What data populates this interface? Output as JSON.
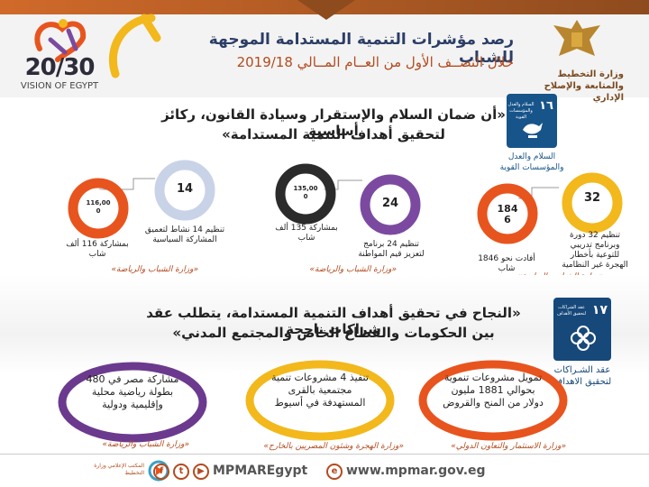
{
  "header": {
    "title": "رصد مؤشرات التنمية المستدامة الموجهة للشباب",
    "subtitle": "خلال النصــف الأول من العــام المــالي  2019/18",
    "ministry": "وزارة التخطيط والمتابعة والإصلاح الإداري",
    "vision_number": "20/30",
    "vision_text": "VISION OF EGYPT"
  },
  "section1": {
    "quote_line1": "«أن ضمان السلام والإستقرار وسيادة القانون، ركائز أساسية",
    "quote_line2": "لتحقيق أهداف التنمية المستدامة»",
    "sdg_number": "١٦",
    "sdg_small": "السلام والعدل والمؤسسات القوية",
    "sdg_label": "السلام والعدل والمؤسسات القوية",
    "items": [
      {
        "value": "116,00\n0",
        "caption": "بمشاركة 116 ألف شاب",
        "color": "#e8541e"
      },
      {
        "value": "14",
        "caption": "تنظيم 14 نشاط لتعميق المشاركة السياسية",
        "color": "#c9d3e8"
      },
      {
        "value": "135,00\n0",
        "caption": "بمشاركة 135 ألف شاب",
        "color": "#2b2b2b"
      },
      {
        "value": "24",
        "caption": "تنظيم 24 برنامج لتعزيز قيم المواطنة",
        "color": "#7b4aa0"
      },
      {
        "value": "184\n6",
        "caption": "أفادت نحو 1846 شاب",
        "color": "#e8541e"
      },
      {
        "value": "32",
        "caption": "تنظيم 32 دورة وبرنامج تدريبي للتوعية بأخطار الهجرة غير النظامية",
        "color": "#f2b81c"
      }
    ],
    "source_a": "«وزارة الشباب والرياضة»",
    "source_b": "«وزارة الشباب والرياضة»",
    "source_c": "«وزارة الشباب والرياضة»"
  },
  "section2": {
    "quote_line1": "«النجاح في تحقيق أهداف التنمية المستدامة، يتطلب عقد شراكات ناجحة",
    "quote_line2": "بين الحكومات والقطاع الخاص والمجتمع المدني»",
    "sdg_number": "١٧",
    "sdg_small": "عقد الشراكات لتحقيق الأهداف",
    "sdg_label": "عقد الشـراكات لتحقيق الاهداف",
    "ovals": [
      {
        "text": "مشاركة مصر في 480 بطولة رياضية محلية وإقليمية ودولية",
        "color": "#6b3a8e",
        "source": "«وزارة الشباب والرياضة»"
      },
      {
        "text": "تنفيذ 4 مشروعات تنمية مجتمعية بالقرى المستهدفة في أسيوط",
        "color": "#f2b81c",
        "source": "«وزارة الهجرة وشئون المصريين بالخارج»"
      },
      {
        "text": "تمويل مشروعات تنموية بحوالي 1881 مليون دولار من المنح والقروض",
        "color": "#e8541e",
        "source": "«وزارة الاستثمار والتعاون الدولي»"
      }
    ]
  },
  "footer": {
    "handle": "MPMAREgypt",
    "url": "www.mpmar.gov.eg",
    "center_name": "المكتب الإعلامي وزارة التخطيط"
  }
}
